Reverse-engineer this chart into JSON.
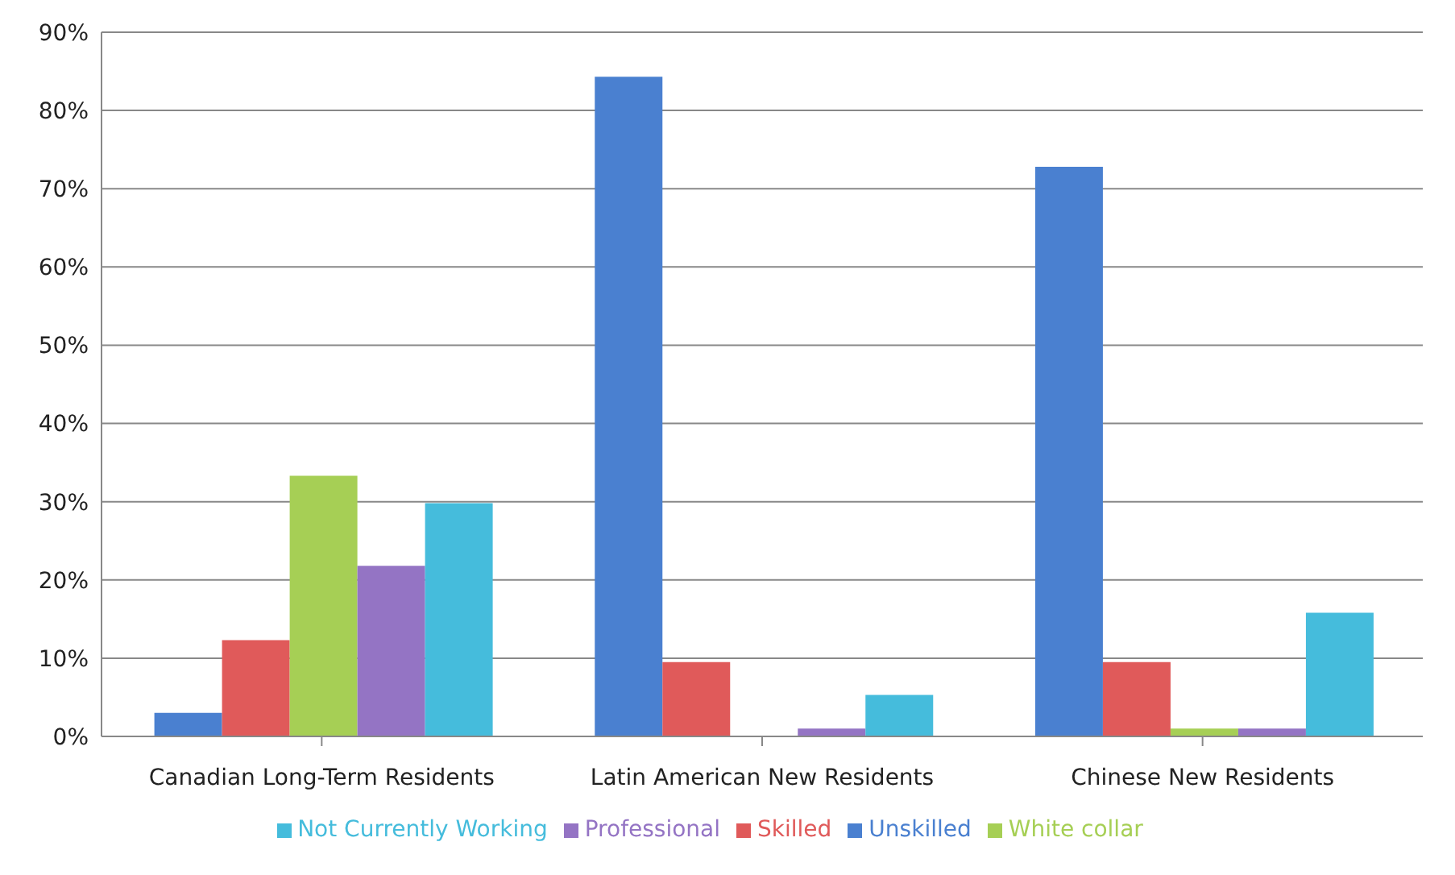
{
  "chart_data": {
    "type": "bar",
    "categories": [
      "Canadian Long-Term Residents",
      "Latin American New Residents",
      "Chinese New Residents"
    ],
    "series": [
      {
        "name": "Unskilled",
        "color": "#4a80d0",
        "values": [
          3,
          84.3,
          72.8
        ]
      },
      {
        "name": "Skilled",
        "color": "#e05a5a",
        "values": [
          12.3,
          9.5,
          9.5
        ]
      },
      {
        "name": "White collar",
        "color": "#a6cf55",
        "values": [
          33.3,
          0,
          1
        ]
      },
      {
        "name": "Professional",
        "color": "#9474c4",
        "values": [
          21.8,
          1,
          1
        ]
      },
      {
        "name": "Not Currently Working",
        "color": "#45bcdc",
        "values": [
          29.8,
          5.3,
          15.8
        ]
      }
    ],
    "ylim": [
      0,
      90
    ],
    "yticks": [
      {
        "value": 0,
        "label": "0%"
      },
      {
        "value": 10,
        "label": "10%"
      },
      {
        "value": 20,
        "label": "20%"
      },
      {
        "value": 30,
        "label": "30%"
      },
      {
        "value": 40,
        "label": "40%"
      },
      {
        "value": 50,
        "label": "50%"
      },
      {
        "value": 60,
        "label": "60%"
      },
      {
        "value": 70,
        "label": "70%"
      },
      {
        "value": 80,
        "label": "80%"
      },
      {
        "value": 90,
        "label": "90%"
      }
    ],
    "grid": "y",
    "legend": "bottom"
  }
}
